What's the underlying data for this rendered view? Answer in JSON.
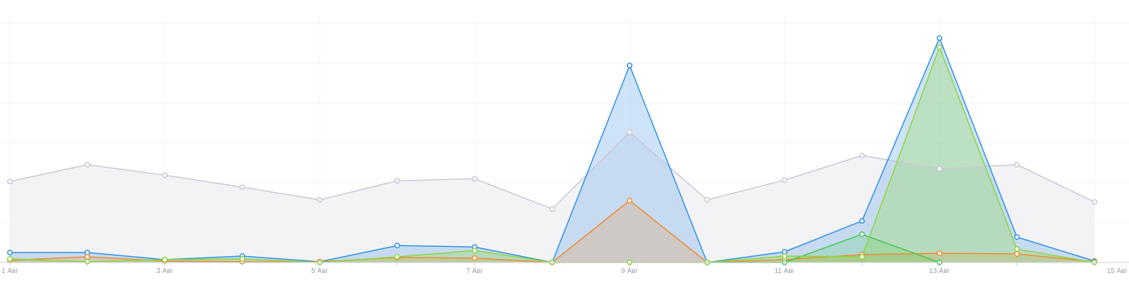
{
  "chart_data": {
    "type": "area",
    "title": "",
    "xlabel": "",
    "ylabel": "",
    "grid": true,
    "x_tick_labels": [
      "1 Авг",
      "3 Авг",
      "5 Авг",
      "7 Авг",
      "9 Авг",
      "11 Авг",
      "13 Авг",
      "15 Авг"
    ],
    "x": [
      1,
      2,
      3,
      4,
      5,
      6,
      7,
      8,
      9,
      10,
      11,
      12,
      13,
      14,
      15
    ],
    "ylim": [
      0,
      340
    ],
    "series": [
      {
        "color": "#c9c8d6",
        "fill": "#f3f3f6",
        "fill_opacity": 1,
        "values": [
          115,
          139,
          124,
          107,
          89,
          116,
          119,
          76,
          185,
          89,
          117,
          152,
          133,
          139,
          86
        ]
      },
      {
        "color": "#2f8fe6",
        "fill": "#7fb5ea",
        "fill_opacity": 0.38,
        "values": [
          14,
          14,
          4,
          9,
          1,
          24,
          22,
          0,
          280,
          0,
          15,
          59,
          319,
          36,
          2
        ]
      },
      {
        "color": "#f08a2c",
        "fill": "#f08a2c",
        "fill_opacity": 0.22,
        "values": [
          3,
          8,
          2,
          1,
          1,
          7,
          6,
          0,
          88,
          0,
          4,
          11,
          13,
          12,
          1
        ]
      },
      {
        "color": "#43c64f",
        "fill": "#43c64f",
        "fill_opacity": 0.2,
        "values": [
          null,
          null,
          null,
          null,
          null,
          null,
          null,
          null,
          null,
          0,
          0,
          40,
          0,
          null,
          null
        ]
      },
      {
        "color": "#8cd63a",
        "fill": "#8cd63a",
        "fill_opacity": 0.28,
        "values": [
          5,
          1,
          4,
          5,
          0,
          8,
          17,
          0,
          0,
          0,
          9,
          8,
          306,
          19,
          0
        ]
      }
    ]
  }
}
